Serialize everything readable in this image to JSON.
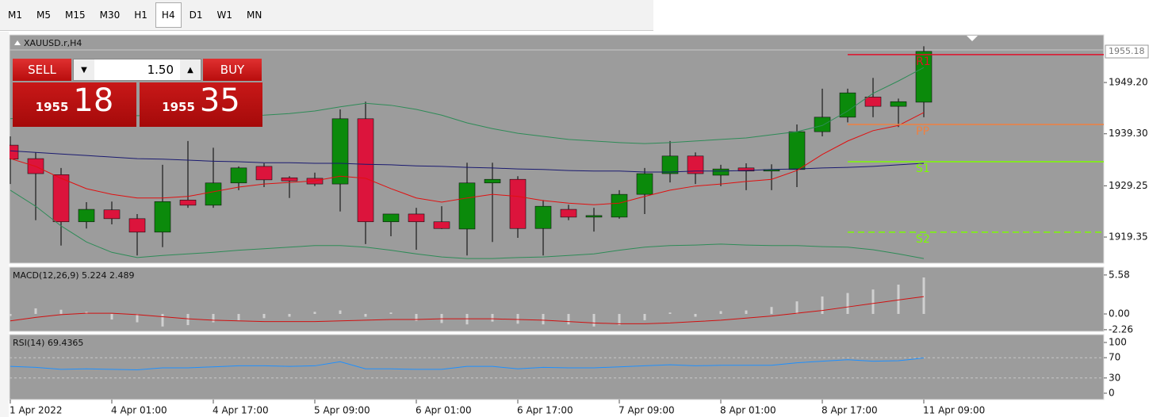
{
  "toolbar": {
    "timeframes": [
      "M1",
      "M5",
      "M15",
      "M30",
      "H1",
      "H4",
      "D1",
      "W1",
      "MN"
    ],
    "active": "H4"
  },
  "trade_panel": {
    "sell": "SELL",
    "buy": "BUY",
    "volume": "1.50",
    "bid_prefix": "1955",
    "bid_pips": "18",
    "ask_prefix": "1955",
    "ask_pips": "35"
  },
  "chart_data": [
    {
      "type": "candlestick",
      "title": "XAUUSD.r,H4",
      "categories": [
        "1 Apr 2022",
        null,
        null,
        null,
        "4 Apr 01:00",
        null,
        null,
        null,
        "4 Apr 17:00",
        null,
        null,
        null,
        "5 Apr 09:00",
        null,
        null,
        null,
        "6 Apr 01:00",
        null,
        null,
        null,
        "6 Apr 17:00",
        null,
        null,
        null,
        "7 Apr 09:00",
        null,
        null,
        null,
        "8 Apr 01:00",
        null,
        null,
        null,
        "8 Apr 17:00",
        null,
        null,
        null,
        "11 Apr 09:00"
      ],
      "open": [
        1937.1,
        1934.5,
        1931.4,
        1922.3,
        1924.6,
        1922.9,
        1920.3,
        1926.5,
        1925.5,
        1929.8,
        1933.0,
        1930.8,
        1930.7,
        1929.6,
        1942.2,
        1922.3,
        1923.8,
        1922.3,
        1920.9,
        1929.8,
        1930.5,
        1921.0,
        1924.7,
        1923.2,
        1923.2,
        1927.6,
        1931.6,
        1935.0,
        1931.3,
        1932.7,
        1932.1,
        1932.4,
        1939.7,
        1942.5,
        1946.4,
        1944.6,
        1945.4
      ],
      "high": [
        1938.8,
        1935.7,
        1932.7,
        1926.1,
        1926.2,
        1923.8,
        1933.3,
        1937.9,
        1936.6,
        1933.0,
        1933.6,
        1931.1,
        1931.8,
        1944.0,
        1945.5,
        1923.8,
        1925.0,
        1925.3,
        1933.7,
        1933.7,
        1931.1,
        1926.5,
        1925.6,
        1925.0,
        1928.4,
        1932.7,
        1937.9,
        1935.7,
        1933.3,
        1933.6,
        1933.4,
        1941.1,
        1948.0,
        1948.0,
        1950.1,
        1946.1,
        1956.2
      ],
      "low": [
        1929.6,
        1922.6,
        1917.7,
        1921.0,
        1921.8,
        1915.8,
        1917.4,
        1925.0,
        1925.0,
        1928.4,
        1929.0,
        1926.9,
        1929.2,
        1924.3,
        1918.0,
        1919.5,
        1916.9,
        1920.9,
        1915.8,
        1918.4,
        1919.2,
        1915.8,
        1922.6,
        1920.4,
        1922.9,
        1923.8,
        1929.9,
        1929.6,
        1929.2,
        1928.4,
        1928.4,
        1929.0,
        1938.8,
        1941.5,
        1942.5,
        1940.6,
        1942.5
      ],
      "close": [
        1934.4,
        1931.6,
        1922.3,
        1924.7,
        1922.9,
        1920.3,
        1926.2,
        1925.5,
        1929.8,
        1932.7,
        1930.4,
        1930.2,
        1929.6,
        1942.2,
        1922.3,
        1923.8,
        1922.3,
        1921.0,
        1929.8,
        1930.5,
        1921.0,
        1925.3,
        1923.2,
        1923.5,
        1927.6,
        1931.6,
        1935.0,
        1931.6,
        1932.5,
        1932.1,
        1932.4,
        1939.7,
        1942.5,
        1947.2,
        1944.6,
        1945.5,
        1955.2
      ],
      "up_color": "#0b8a0b",
      "down_color": "#dc143c",
      "ylim": [
        1914.3,
        1958.4
      ],
      "yticks": [
        1919.35,
        1929.25,
        {
          "value": 1939.3,
          "label": "1939.30"
        },
        {
          "value": 1949.2,
          "label": "1949.20"
        }
      ],
      "current_price": 1955.18,
      "overlays": [
        {
          "color": "#2e8b57",
          "values": [
            1942.2,
            1942.5,
            1942.5,
            1942.6,
            1942.8,
            1942.8,
            1942.8,
            1942.8,
            1942.8,
            1942.8,
            1942.9,
            1943.2,
            1943.7,
            1944.5,
            1945.2,
            1944.8,
            1944.0,
            1942.9,
            1941.4,
            1940.3,
            1939.4,
            1938.8,
            1938.2,
            1937.9,
            1937.6,
            1937.4,
            1937.6,
            1937.9,
            1938.2,
            1938.5,
            1939.1,
            1939.7,
            1940.9,
            1943.7,
            1947.1,
            1949.5,
            1952.1
          ]
        },
        {
          "color": "#2e8b57",
          "values": [
            1928.4,
            1925.3,
            1921.5,
            1918.4,
            1916.4,
            1915.4,
            1915.8,
            1916.1,
            1916.4,
            1916.8,
            1917.1,
            1917.4,
            1917.7,
            1917.7,
            1917.4,
            1916.8,
            1916.1,
            1915.5,
            1915.2,
            1915.2,
            1915.4,
            1915.5,
            1915.8,
            1916.1,
            1916.8,
            1917.4,
            1917.7,
            1917.8,
            1918.0,
            1917.8,
            1917.7,
            1917.7,
            1917.5,
            1917.4,
            1916.9,
            1916.1,
            1915.2
          ]
        },
        {
          "color": "#1a1a70",
          "values": [
            1936.0,
            1935.7,
            1935.4,
            1935.1,
            1934.8,
            1934.5,
            1934.4,
            1934.2,
            1934.0,
            1933.9,
            1933.7,
            1933.7,
            1933.6,
            1933.6,
            1933.4,
            1933.3,
            1933.1,
            1933.0,
            1932.8,
            1932.7,
            1932.5,
            1932.4,
            1932.2,
            1932.1,
            1932.1,
            1931.9,
            1931.9,
            1932.1,
            1932.1,
            1932.2,
            1932.4,
            1932.5,
            1932.7,
            1932.8,
            1933.0,
            1933.3,
            1933.6
          ]
        },
        {
          "color": "#e01010",
          "values": [
            1934.5,
            1933.0,
            1930.7,
            1928.7,
            1927.6,
            1926.9,
            1926.9,
            1927.2,
            1928.1,
            1929.0,
            1929.6,
            1929.9,
            1930.2,
            1931.1,
            1930.7,
            1928.7,
            1926.9,
            1926.1,
            1926.9,
            1927.6,
            1927.2,
            1926.4,
            1925.9,
            1925.6,
            1925.9,
            1927.2,
            1928.4,
            1929.2,
            1929.6,
            1930.1,
            1930.5,
            1932.2,
            1935.3,
            1937.9,
            1939.9,
            1940.9,
            1943.4
          ]
        }
      ],
      "levels": [
        {
          "name": "R1",
          "value": 1954.6,
          "color": "#e0102a",
          "dashed": false
        },
        {
          "name": "PP",
          "value": 1941.1,
          "color": "#f08040",
          "dashed": false
        },
        {
          "name": "S1",
          "value": 1933.9,
          "color": "#7cfc00",
          "dashed": false
        },
        {
          "name": "S2",
          "value": 1920.3,
          "color": "#7cfc00",
          "dashed": true
        }
      ]
    },
    {
      "type": "macd",
      "title": "MACD(12,26,9) 5.224 2.489",
      "histogram": {
        "color": "#d0d0d0",
        "values": [
          -0.3,
          0.8,
          0.6,
          0.3,
          -0.8,
          -1.2,
          -1.8,
          -1.6,
          -1.2,
          -0.9,
          -0.6,
          -0.4,
          0.3,
          0.5,
          -0.4,
          0.2,
          -1.0,
          -1.3,
          -1.5,
          -1.1,
          -1.4,
          -1.5,
          -1.5,
          -1.8,
          -1.6,
          -0.9,
          0.2,
          -0.4,
          0.4,
          0.5,
          1.0,
          1.8,
          2.5,
          3.0,
          3.5,
          4.2,
          5.224
        ]
      },
      "signal": {
        "color": "#d01010",
        "values": [
          -1.0,
          -0.5,
          -0.1,
          0.1,
          0.1,
          -0.1,
          -0.4,
          -0.7,
          -0.9,
          -1.0,
          -1.1,
          -1.1,
          -1.1,
          -1.0,
          -0.9,
          -0.8,
          -0.8,
          -0.7,
          -0.7,
          -0.7,
          -0.8,
          -0.9,
          -1.1,
          -1.3,
          -1.4,
          -1.4,
          -1.3,
          -1.1,
          -0.9,
          -0.6,
          -0.3,
          0.1,
          0.5,
          1.0,
          1.5,
          2.0,
          2.489
        ]
      },
      "ylim": [
        -2.5,
        6.7
      ],
      "yticks": [
        5.58,
        {
          "value": 0,
          "label": "0.00"
        },
        -2.26
      ]
    },
    {
      "type": "rsi",
      "title": "RSI(14) 69.4365",
      "color": "#1e90ff",
      "values": [
        53,
        51,
        47,
        48,
        47,
        46,
        50,
        50,
        52,
        54,
        54,
        53,
        54,
        62,
        48,
        48,
        47,
        47,
        53,
        53,
        48,
        51,
        50,
        50,
        52,
        54,
        56,
        54,
        55,
        55,
        55,
        60,
        63,
        66,
        63,
        64,
        69.4365
      ],
      "ylim": [
        -12.5,
        115.6
      ],
      "yticks": [
        100,
        70,
        30,
        0
      ],
      "levels": [
        70,
        30
      ]
    }
  ]
}
